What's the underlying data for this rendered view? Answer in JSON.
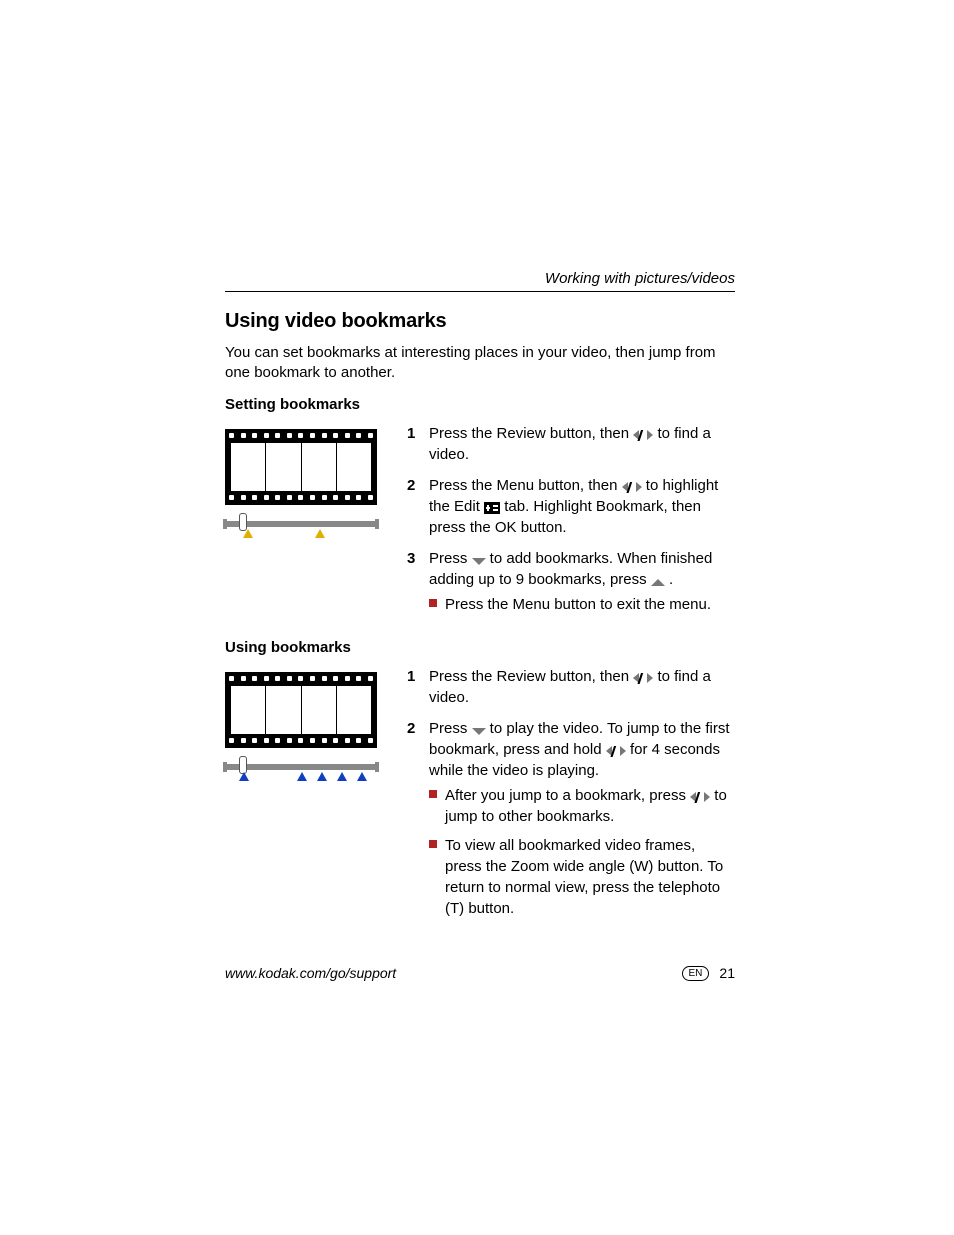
{
  "header": {
    "chapter": "Working with pictures/videos"
  },
  "title": "Using video bookmarks",
  "intro": "You can set bookmarks at interesting places in your video, then jump from one bookmark to another.",
  "section1": {
    "heading": "Setting bookmarks",
    "steps": {
      "s1": {
        "num": "1",
        "pre": "Press the Review button, then ",
        "post": " to find a video."
      },
      "s2": {
        "num": "2",
        "pre": "Press the Menu button, then ",
        "mid": " to highlight the Edit ",
        "post": " tab. Highlight Bookmark, then press the OK button."
      },
      "s3": {
        "num": "3",
        "pre": "Press ",
        "mid": " to add bookmarks. When finished adding up to 9 bookmarks, press ",
        "post": " ."
      }
    },
    "bullet1": "Press the Menu button to exit the menu.",
    "markers": {
      "color": "#e0b000",
      "positions": [
        18,
        90
      ],
      "playhead": 14
    }
  },
  "section2": {
    "heading": "Using bookmarks",
    "steps": {
      "s1": {
        "num": "1",
        "pre": "Press the Review button, then ",
        "post": " to find a video."
      },
      "s2": {
        "num": "2",
        "pre": "Press ",
        "mid": " to play the video. To jump to the first bookmark, press and hold ",
        "post": " for 4 seconds while the video is playing."
      }
    },
    "b1": {
      "pre": "After you jump to a bookmark, press ",
      "post": " to jump to other bookmarks."
    },
    "b2": "To view all bookmarked video frames, press the Zoom wide angle (W) button. To return to normal view, press the telephoto (T) button.",
    "markers": {
      "color": "#1040c0",
      "positions": [
        14,
        72,
        92,
        112,
        132
      ],
      "playhead": 14
    }
  },
  "footer": {
    "url": "www.kodak.com/go/support",
    "lang": "EN",
    "page": "21"
  },
  "colors": {
    "bullet": "#b22222",
    "arrow": "#777777"
  }
}
